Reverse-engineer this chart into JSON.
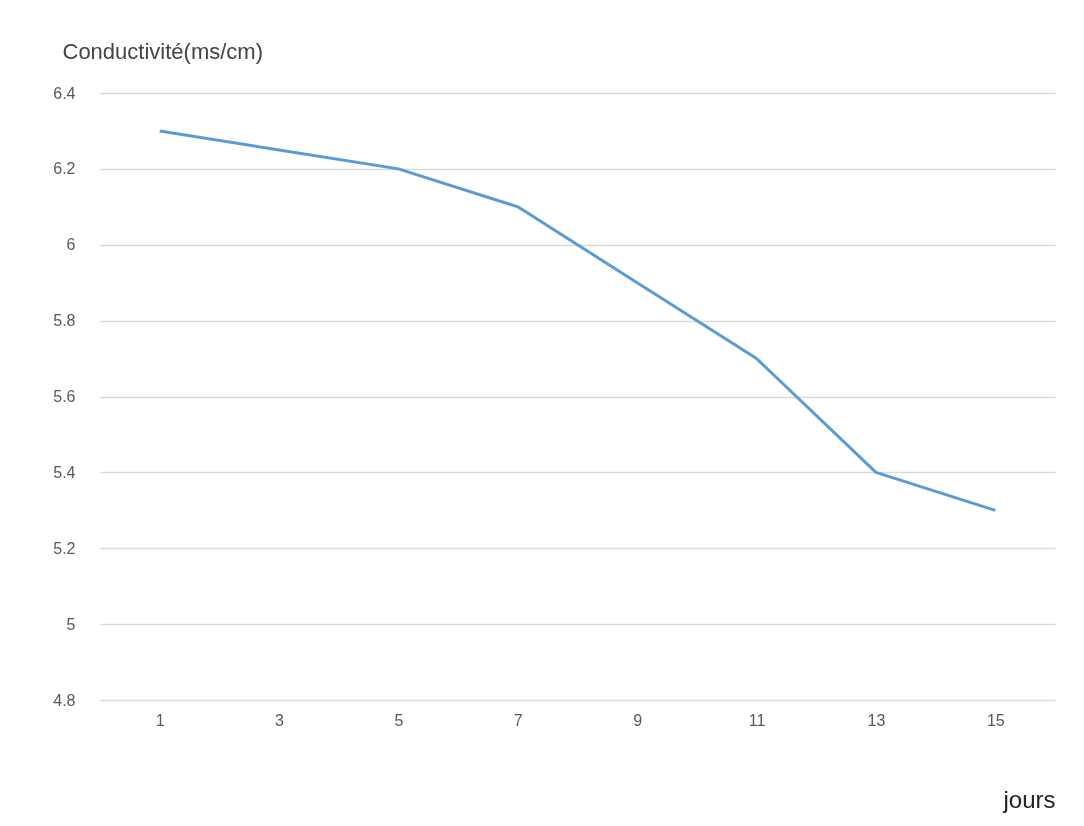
{
  "chart_data": {
    "type": "line",
    "ylabel": "Conductivité(ms/cm)",
    "xlabel": "jours",
    "categories": [
      "1",
      "3",
      "5",
      "7",
      "9",
      "11",
      "13",
      "15"
    ],
    "series": [
      {
        "color": "#5b9bd5",
        "values": [
          6.3,
          6.25,
          6.2,
          6.1,
          5.9,
          5.7,
          5.4,
          5.3
        ]
      }
    ],
    "ylim": [
      4.8,
      6.4
    ],
    "yticks": [
      4.8,
      5,
      5.2,
      5.4,
      5.6,
      5.8,
      6,
      6.2,
      6.4
    ],
    "grid": "y",
    "line_style": "solid"
  }
}
